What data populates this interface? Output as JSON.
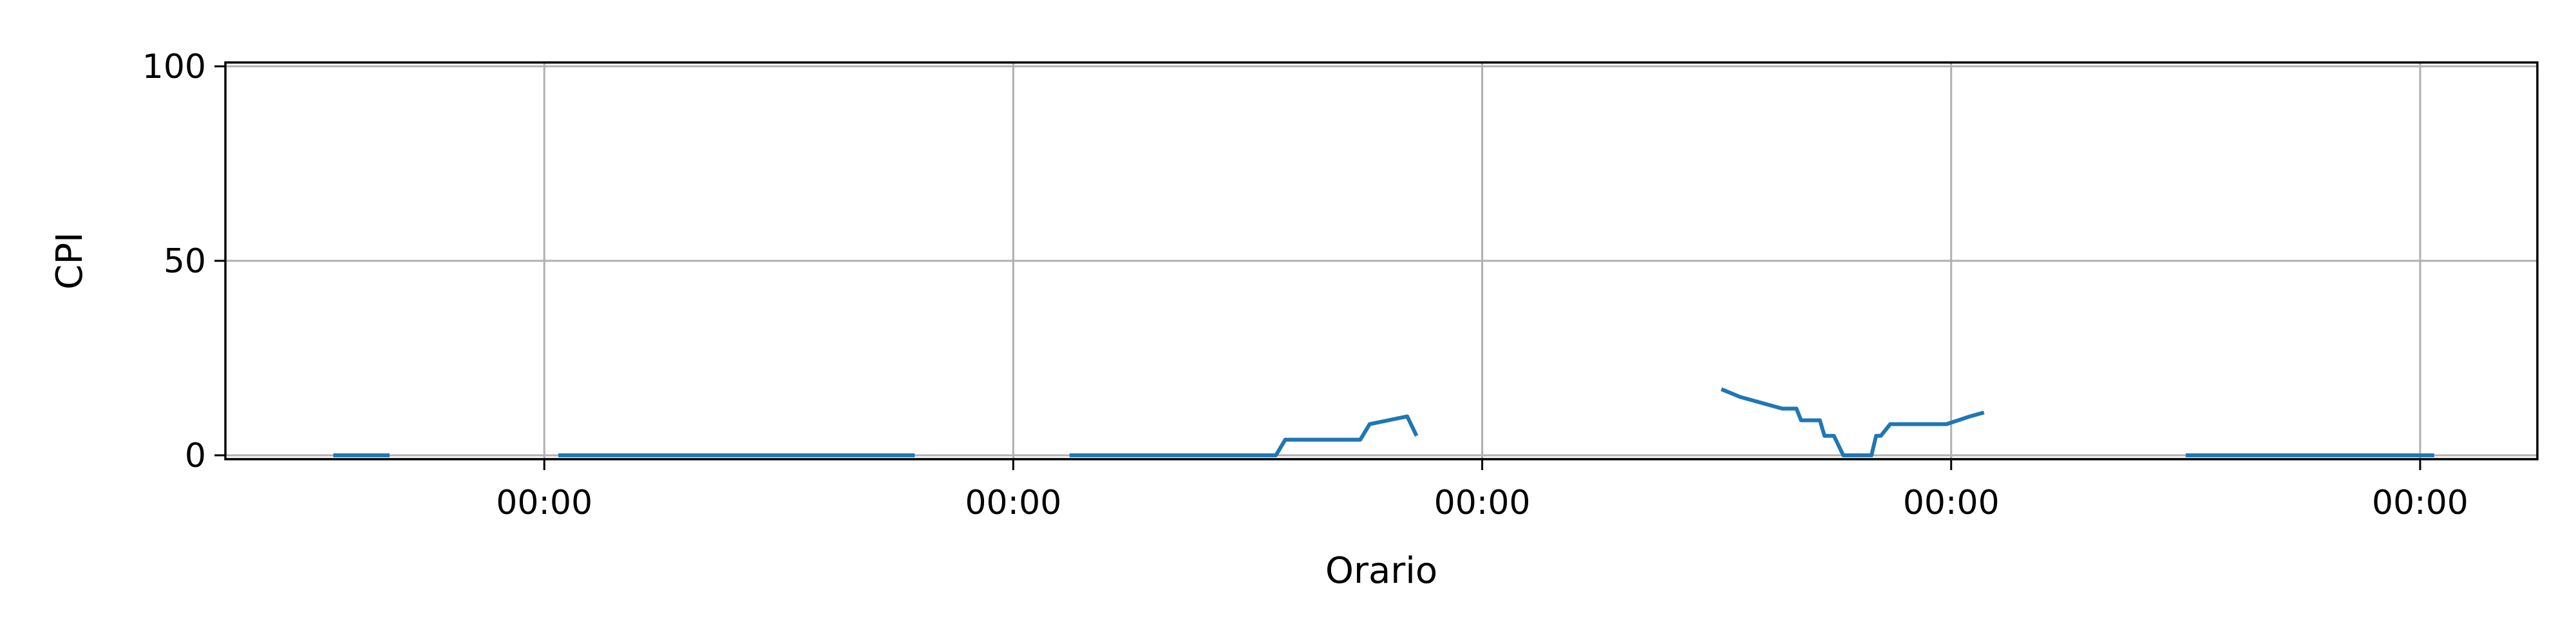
{
  "chart_data": {
    "type": "line",
    "xlabel": "Orario",
    "ylabel": "CPI",
    "ylim": [
      -1,
      101
    ],
    "xlim": [
      -0.68,
      4.25
    ],
    "grid": true,
    "line_color": "#1f77b4",
    "grid_color": "#b0b0b0",
    "x_ticks": [
      {
        "value": 0,
        "label": "00:00"
      },
      {
        "value": 1,
        "label": "00:00"
      },
      {
        "value": 2,
        "label": "00:00"
      },
      {
        "value": 3,
        "label": "00:00"
      },
      {
        "value": 4,
        "label": "00:00"
      }
    ],
    "y_ticks": [
      {
        "value": 0,
        "label": "0"
      },
      {
        "value": 50,
        "label": "50"
      },
      {
        "value": 100,
        "label": "100"
      }
    ],
    "series": [
      {
        "segments": [
          [
            [
              -0.45,
              0
            ],
            [
              -0.33,
              0
            ]
          ],
          [
            [
              0.03,
              0
            ],
            [
              0.79,
              0
            ]
          ],
          [
            [
              1.12,
              0
            ],
            [
              1.56,
              0
            ],
            [
              1.58,
              4
            ],
            [
              1.74,
              4
            ],
            [
              1.76,
              8
            ],
            [
              1.84,
              10
            ],
            [
              1.86,
              5
            ]
          ],
          [
            [
              2.51,
              17
            ],
            [
              2.55,
              15
            ],
            [
              2.61,
              13
            ],
            [
              2.64,
              12
            ],
            [
              2.67,
              12
            ],
            [
              2.68,
              9
            ],
            [
              2.72,
              9
            ],
            [
              2.73,
              5
            ],
            [
              2.75,
              5
            ],
            [
              2.77,
              0
            ],
            [
              2.83,
              0
            ],
            [
              2.84,
              5
            ],
            [
              2.85,
              5
            ],
            [
              2.87,
              8
            ],
            [
              2.99,
              8
            ],
            [
              3.04,
              10
            ],
            [
              3.07,
              11
            ]
          ],
          [
            [
              3.5,
              0
            ],
            [
              4.03,
              0
            ]
          ]
        ]
      }
    ]
  }
}
